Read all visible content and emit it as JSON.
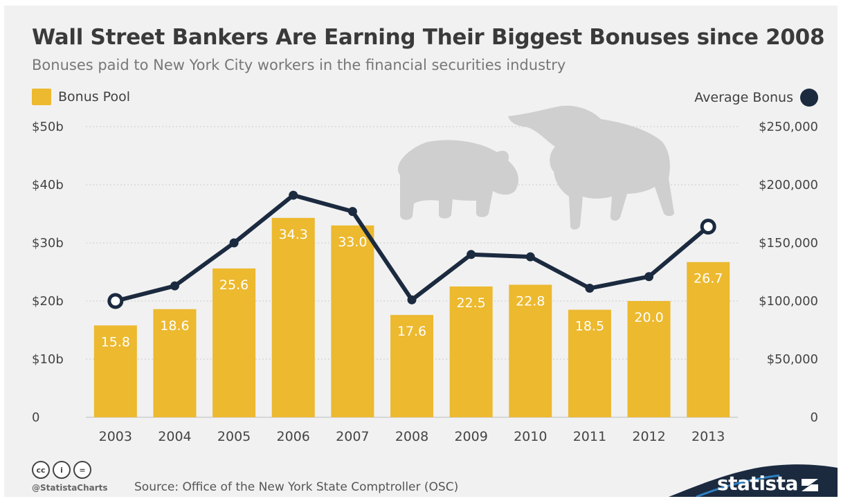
{
  "title": "Wall Street Bankers Are Earning Their Biggest Bonuses since 2008",
  "subtitle": "Bonuses paid to New York City workers in the financial securities industry",
  "legend": {
    "left": "Bonus Pool",
    "right": "Average Bonus"
  },
  "colors": {
    "bar": "#ecb92f",
    "line": "#1b2a3f",
    "animal": "#cfcfcf",
    "brand": "#1b2a3f"
  },
  "chart_data": {
    "type": "bar",
    "categories": [
      "2003",
      "2004",
      "2005",
      "2006",
      "2007",
      "2008",
      "2009",
      "2010",
      "2011",
      "2012",
      "2013"
    ],
    "series": [
      {
        "name": "Bonus Pool",
        "type": "bar",
        "axis": "left",
        "values": [
          15.8,
          18.6,
          25.6,
          34.3,
          33.0,
          17.6,
          22.5,
          22.8,
          18.5,
          20.0,
          26.7
        ],
        "labels": [
          "15.8",
          "18.6",
          "25.6",
          "34.3",
          "33.0",
          "17.6",
          "22.5",
          "22.8",
          "18.5",
          "20.0",
          "26.7"
        ]
      },
      {
        "name": "Average Bonus",
        "type": "line",
        "axis": "right",
        "values": [
          100000,
          113000,
          150000,
          191000,
          177000,
          101000,
          140000,
          138000,
          111000,
          121000,
          164000
        ],
        "highlighted_points": [
          "2003",
          "2013"
        ]
      }
    ],
    "left_axis": {
      "ticks": [
        "0",
        "$10b",
        "$20b",
        "$30b",
        "$40b",
        "$50b"
      ],
      "range": [
        0,
        50
      ]
    },
    "right_axis": {
      "ticks": [
        "0",
        "$50,000",
        "$100,000",
        "$150,000",
        "$200,000",
        "$250,000"
      ],
      "range": [
        0,
        250000
      ]
    },
    "grid": true,
    "legend_placement": "top"
  },
  "footer": {
    "license_icons": [
      "cc-icon",
      "by-icon",
      "nd-icon"
    ],
    "license_glyphs": [
      "cc",
      "i",
      "="
    ],
    "handle": "@StatistaCharts",
    "source": "Source: Office of the New York State Comptroller (OSC)",
    "brand": "statista"
  }
}
